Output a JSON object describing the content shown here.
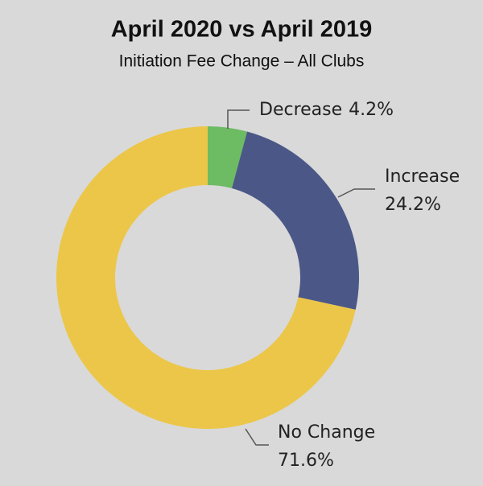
{
  "chart_data": {
    "type": "donut",
    "title": "April 2020 vs April 2019",
    "subtitle": "Initiation Fee Change – All Clubs",
    "categories": [
      "Decrease",
      "Increase",
      "No Change"
    ],
    "values": [
      4.2,
      24.2,
      71.6
    ],
    "value_labels": [
      "4.2%",
      "24.2%",
      "71.6%"
    ],
    "colors": [
      "#6dbb63",
      "#4b5887",
      "#ecc648"
    ]
  }
}
